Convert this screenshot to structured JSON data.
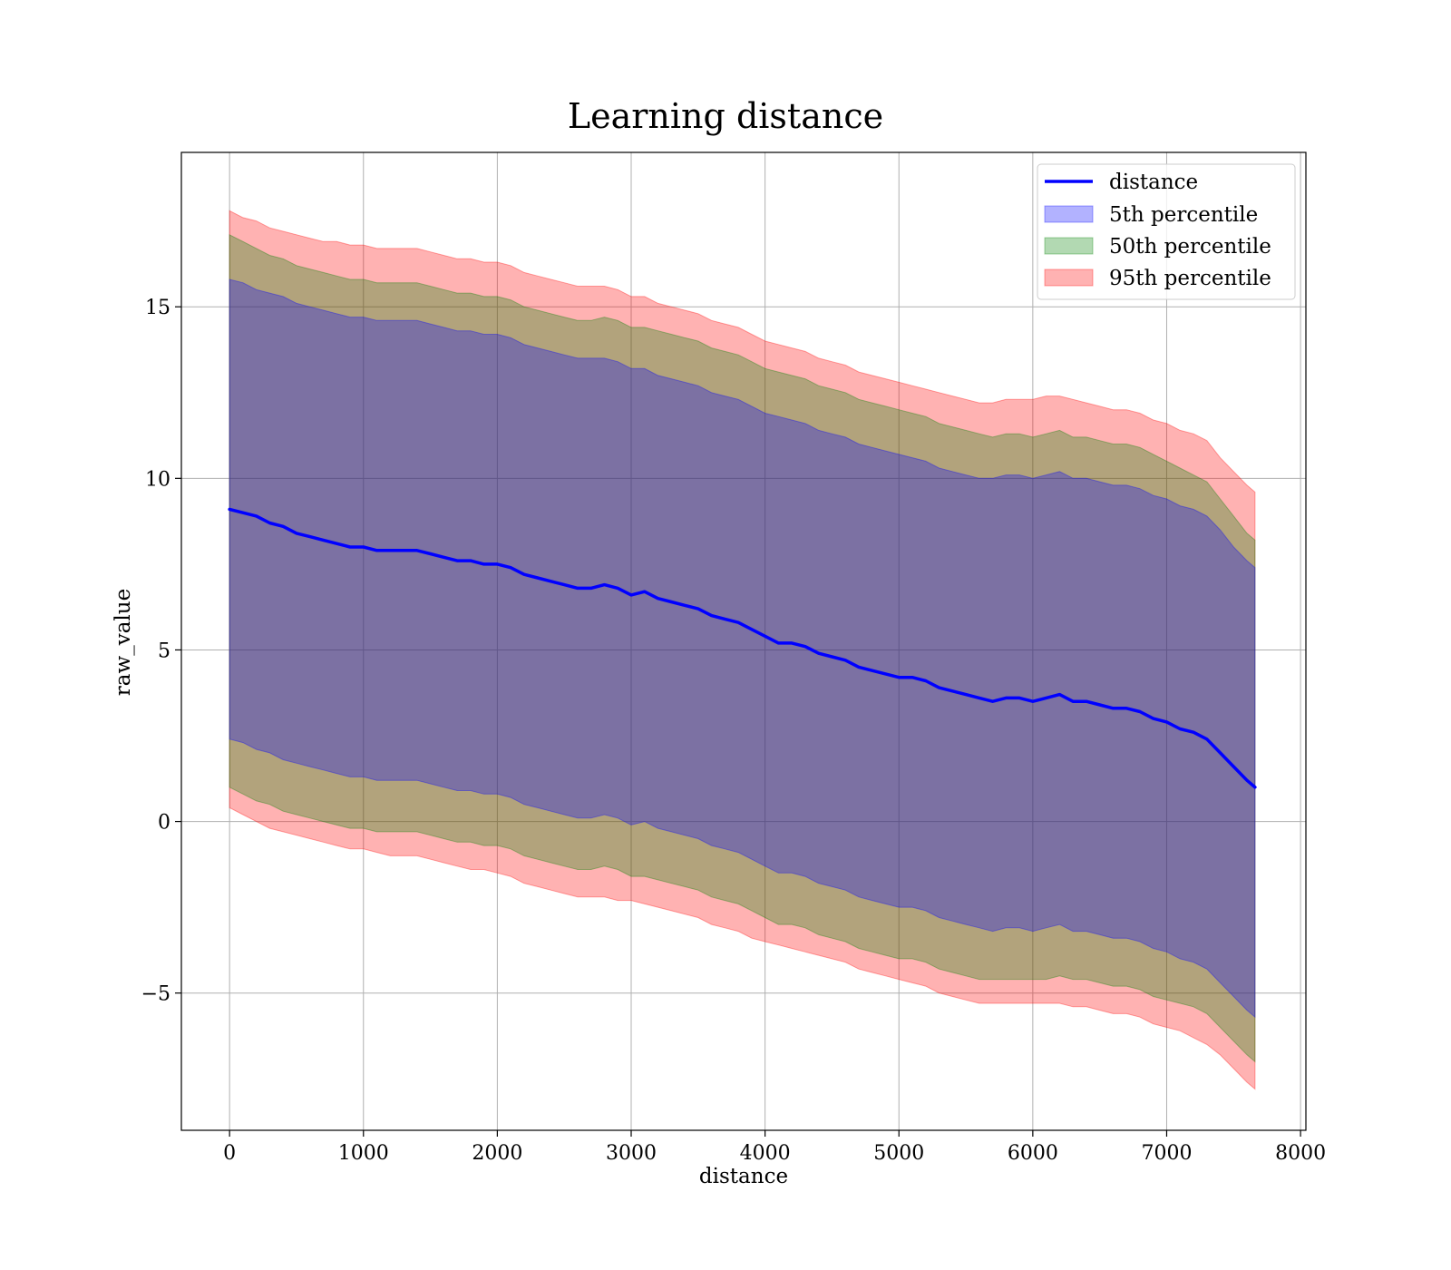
{
  "chart_data": {
    "type": "line",
    "title": "Learning distance",
    "xlabel": "distance",
    "ylabel": "raw_value",
    "xlim": [
      -360,
      8040
    ],
    "ylim": [
      -9,
      19.5
    ],
    "xticks": [
      0,
      1000,
      2000,
      3000,
      4000,
      5000,
      6000,
      7000,
      8000
    ],
    "xtick_labels": [
      "0",
      "1000",
      "2000",
      "3000",
      "4000",
      "5000",
      "6000",
      "7000",
      "8000"
    ],
    "yticks": [
      -5,
      0,
      5,
      10,
      15
    ],
    "ytick_labels": [
      "−5",
      "0",
      "5",
      "10",
      "15"
    ],
    "grid": true,
    "legend_position": "top-right",
    "legend": [
      "distance",
      "5th percentile",
      "50th percentile",
      "95th percentile"
    ],
    "colors": {
      "line": "#0000ff",
      "band_5th": "#0000ff",
      "band_50th": "#008000",
      "band_95th": "#ff0000",
      "grid": "#b0b0b0"
    },
    "band_alpha": 0.3,
    "x": [
      0,
      100,
      200,
      300,
      400,
      500,
      600,
      700,
      800,
      900,
      1000,
      1100,
      1200,
      1300,
      1400,
      1500,
      1600,
      1700,
      1800,
      1900,
      2000,
      2100,
      2200,
      2300,
      2400,
      2500,
      2600,
      2700,
      2800,
      2900,
      3000,
      3100,
      3200,
      3300,
      3400,
      3500,
      3600,
      3700,
      3800,
      3900,
      4000,
      4100,
      4200,
      4300,
      4400,
      4500,
      4600,
      4700,
      4800,
      4900,
      5000,
      5100,
      5200,
      5300,
      5400,
      5500,
      5600,
      5700,
      5800,
      5900,
      6000,
      6100,
      6200,
      6300,
      6400,
      6500,
      6600,
      6700,
      6800,
      6900,
      7000,
      7100,
      7200,
      7300,
      7400,
      7500,
      7600,
      7660
    ],
    "series": [
      {
        "name": "distance",
        "values": [
          9.1,
          9.0,
          8.9,
          8.7,
          8.6,
          8.4,
          8.3,
          8.2,
          8.1,
          8.0,
          8.0,
          7.9,
          7.9,
          7.9,
          7.9,
          7.8,
          7.7,
          7.6,
          7.6,
          7.5,
          7.5,
          7.4,
          7.2,
          7.1,
          7.0,
          6.9,
          6.8,
          6.8,
          6.9,
          6.8,
          6.6,
          6.7,
          6.5,
          6.4,
          6.3,
          6.2,
          6.0,
          5.9,
          5.8,
          5.6,
          5.4,
          5.2,
          5.2,
          5.1,
          4.9,
          4.8,
          4.7,
          4.5,
          4.4,
          4.3,
          4.2,
          4.2,
          4.1,
          3.9,
          3.8,
          3.7,
          3.6,
          3.5,
          3.6,
          3.6,
          3.5,
          3.6,
          3.7,
          3.5,
          3.5,
          3.4,
          3.3,
          3.3,
          3.2,
          3.0,
          2.9,
          2.7,
          2.6,
          2.4,
          2.0,
          1.6,
          1.2,
          1.0
        ]
      }
    ],
    "bands": [
      {
        "name": "95th percentile",
        "lower": [
          0.4,
          0.2,
          0.0,
          -0.2,
          -0.3,
          -0.4,
          -0.5,
          -0.6,
          -0.7,
          -0.8,
          -0.8,
          -0.9,
          -1.0,
          -1.0,
          -1.0,
          -1.1,
          -1.2,
          -1.3,
          -1.4,
          -1.4,
          -1.5,
          -1.6,
          -1.8,
          -1.9,
          -2.0,
          -2.1,
          -2.2,
          -2.2,
          -2.2,
          -2.3,
          -2.3,
          -2.4,
          -2.5,
          -2.6,
          -2.7,
          -2.8,
          -3.0,
          -3.1,
          -3.2,
          -3.4,
          -3.5,
          -3.6,
          -3.7,
          -3.8,
          -3.9,
          -4.0,
          -4.1,
          -4.3,
          -4.4,
          -4.5,
          -4.6,
          -4.7,
          -4.8,
          -5.0,
          -5.1,
          -5.2,
          -5.3,
          -5.3,
          -5.3,
          -5.3,
          -5.3,
          -5.3,
          -5.3,
          -5.4,
          -5.4,
          -5.5,
          -5.6,
          -5.6,
          -5.7,
          -5.9,
          -6.0,
          -6.1,
          -6.3,
          -6.5,
          -6.8,
          -7.2,
          -7.6,
          -7.8
        ],
        "upper": [
          17.8,
          17.6,
          17.5,
          17.3,
          17.2,
          17.1,
          17.0,
          16.9,
          16.9,
          16.8,
          16.8,
          16.7,
          16.7,
          16.7,
          16.7,
          16.6,
          16.5,
          16.4,
          16.4,
          16.3,
          16.3,
          16.2,
          16.0,
          15.9,
          15.8,
          15.7,
          15.6,
          15.6,
          15.6,
          15.5,
          15.3,
          15.3,
          15.1,
          15.0,
          14.9,
          14.8,
          14.6,
          14.5,
          14.4,
          14.2,
          14.0,
          13.9,
          13.8,
          13.7,
          13.5,
          13.4,
          13.3,
          13.1,
          13.0,
          12.9,
          12.8,
          12.7,
          12.6,
          12.5,
          12.4,
          12.3,
          12.2,
          12.2,
          12.3,
          12.3,
          12.3,
          12.4,
          12.4,
          12.3,
          12.2,
          12.1,
          12.0,
          12.0,
          11.9,
          11.7,
          11.6,
          11.4,
          11.3,
          11.1,
          10.6,
          10.2,
          9.8,
          9.6
        ]
      },
      {
        "name": "50th percentile",
        "lower": [
          1.0,
          0.8,
          0.6,
          0.5,
          0.3,
          0.2,
          0.1,
          0.0,
          -0.1,
          -0.2,
          -0.2,
          -0.3,
          -0.3,
          -0.3,
          -0.3,
          -0.4,
          -0.5,
          -0.6,
          -0.6,
          -0.7,
          -0.7,
          -0.8,
          -1.0,
          -1.1,
          -1.2,
          -1.3,
          -1.4,
          -1.4,
          -1.3,
          -1.4,
          -1.6,
          -1.6,
          -1.7,
          -1.8,
          -1.9,
          -2.0,
          -2.2,
          -2.3,
          -2.4,
          -2.6,
          -2.8,
          -3.0,
          -3.0,
          -3.1,
          -3.3,
          -3.4,
          -3.5,
          -3.7,
          -3.8,
          -3.9,
          -4.0,
          -4.0,
          -4.1,
          -4.3,
          -4.4,
          -4.5,
          -4.6,
          -4.6,
          -4.6,
          -4.6,
          -4.6,
          -4.6,
          -4.5,
          -4.6,
          -4.6,
          -4.7,
          -4.8,
          -4.8,
          -4.9,
          -5.1,
          -5.2,
          -5.3,
          -5.4,
          -5.6,
          -6.0,
          -6.4,
          -6.8,
          -7.0
        ],
        "upper": [
          17.1,
          16.9,
          16.7,
          16.5,
          16.4,
          16.2,
          16.1,
          16.0,
          15.9,
          15.8,
          15.8,
          15.7,
          15.7,
          15.7,
          15.7,
          15.6,
          15.5,
          15.4,
          15.4,
          15.3,
          15.3,
          15.2,
          15.0,
          14.9,
          14.8,
          14.7,
          14.6,
          14.6,
          14.7,
          14.6,
          14.4,
          14.4,
          14.3,
          14.2,
          14.1,
          14.0,
          13.8,
          13.7,
          13.6,
          13.4,
          13.2,
          13.1,
          13.0,
          12.9,
          12.7,
          12.6,
          12.5,
          12.3,
          12.2,
          12.1,
          12.0,
          11.9,
          11.8,
          11.6,
          11.5,
          11.4,
          11.3,
          11.2,
          11.3,
          11.3,
          11.2,
          11.3,
          11.4,
          11.2,
          11.2,
          11.1,
          11.0,
          11.0,
          10.9,
          10.7,
          10.5,
          10.3,
          10.1,
          9.9,
          9.4,
          8.9,
          8.4,
          8.2
        ]
      },
      {
        "name": "5th percentile",
        "lower": [
          2.4,
          2.3,
          2.1,
          2.0,
          1.8,
          1.7,
          1.6,
          1.5,
          1.4,
          1.3,
          1.3,
          1.2,
          1.2,
          1.2,
          1.2,
          1.1,
          1.0,
          0.9,
          0.9,
          0.8,
          0.8,
          0.7,
          0.5,
          0.4,
          0.3,
          0.2,
          0.1,
          0.1,
          0.2,
          0.1,
          -0.1,
          0.0,
          -0.2,
          -0.3,
          -0.4,
          -0.5,
          -0.7,
          -0.8,
          -0.9,
          -1.1,
          -1.3,
          -1.5,
          -1.5,
          -1.6,
          -1.8,
          -1.9,
          -2.0,
          -2.2,
          -2.3,
          -2.4,
          -2.5,
          -2.5,
          -2.6,
          -2.8,
          -2.9,
          -3.0,
          -3.1,
          -3.2,
          -3.1,
          -3.1,
          -3.2,
          -3.1,
          -3.0,
          -3.2,
          -3.2,
          -3.3,
          -3.4,
          -3.4,
          -3.5,
          -3.7,
          -3.8,
          -4.0,
          -4.1,
          -4.3,
          -4.7,
          -5.1,
          -5.5,
          -5.7
        ],
        "upper": [
          15.8,
          15.7,
          15.5,
          15.4,
          15.3,
          15.1,
          15.0,
          14.9,
          14.8,
          14.7,
          14.7,
          14.6,
          14.6,
          14.6,
          14.6,
          14.5,
          14.4,
          14.3,
          14.3,
          14.2,
          14.2,
          14.1,
          13.9,
          13.8,
          13.7,
          13.6,
          13.5,
          13.5,
          13.5,
          13.4,
          13.2,
          13.2,
          13.0,
          12.9,
          12.8,
          12.7,
          12.5,
          12.4,
          12.3,
          12.1,
          11.9,
          11.8,
          11.7,
          11.6,
          11.4,
          11.3,
          11.2,
          11.0,
          10.9,
          10.8,
          10.7,
          10.6,
          10.5,
          10.3,
          10.2,
          10.1,
          10.0,
          10.0,
          10.1,
          10.1,
          10.0,
          10.1,
          10.2,
          10.0,
          10.0,
          9.9,
          9.8,
          9.8,
          9.7,
          9.5,
          9.4,
          9.2,
          9.1,
          8.9,
          8.5,
          8.0,
          7.6,
          7.4
        ]
      }
    ]
  }
}
